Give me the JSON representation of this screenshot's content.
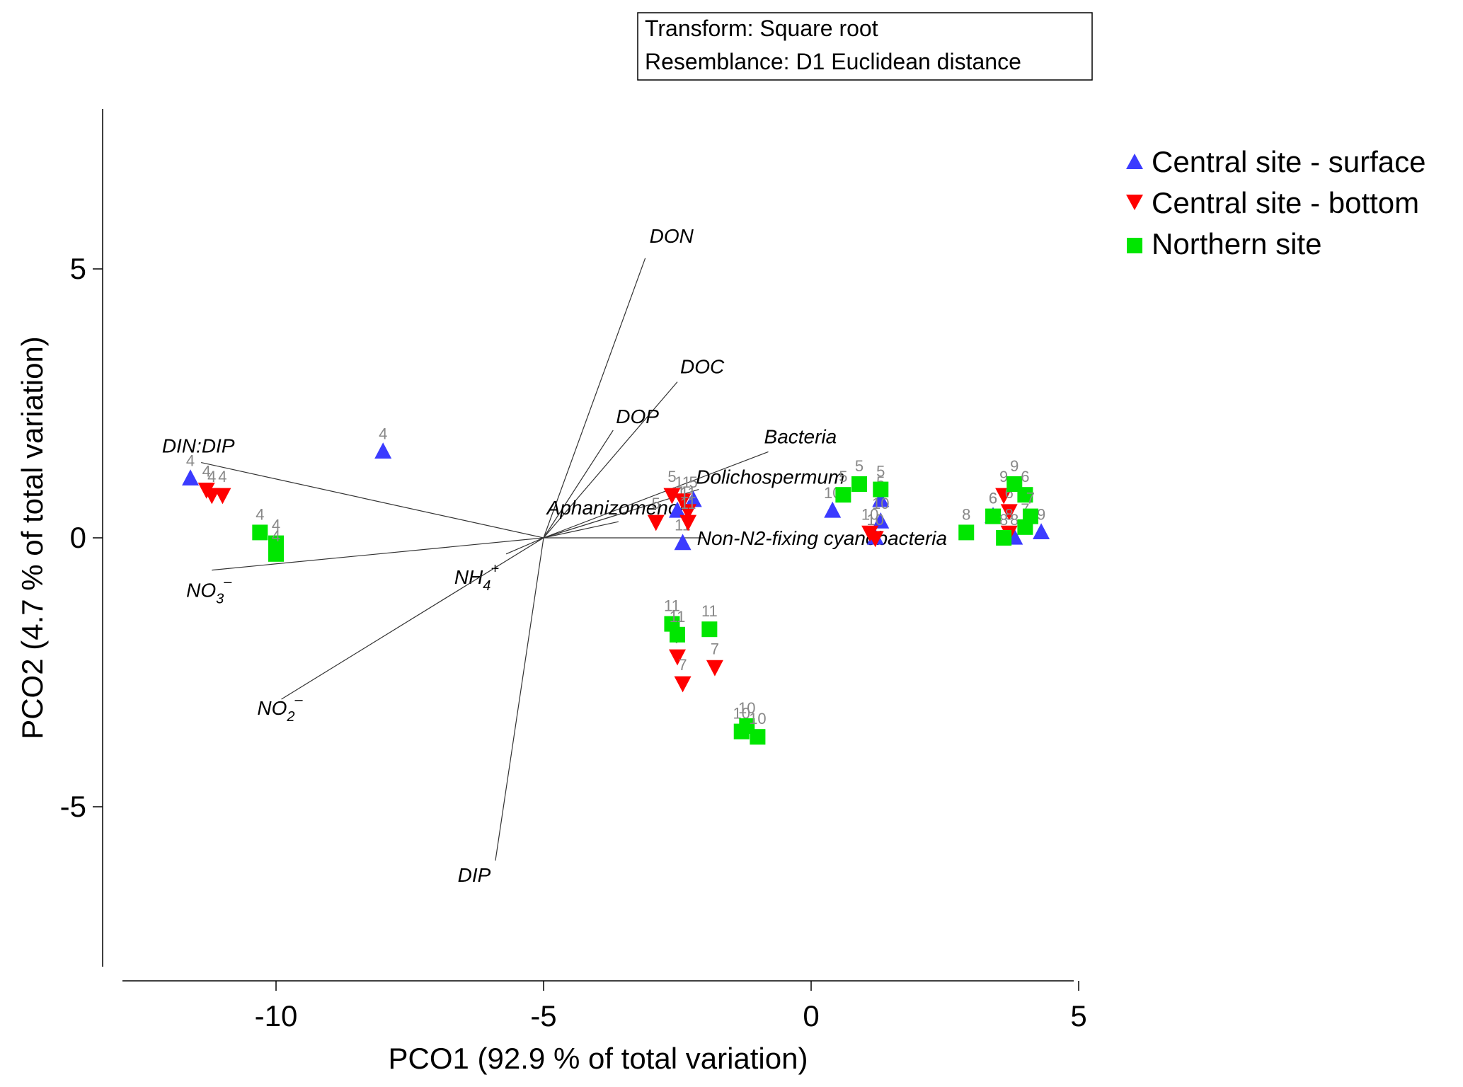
{
  "chart_data": {
    "type": "scatter",
    "xlabel": "PCO1 (92.9 % of total variation)",
    "ylabel": "PCO2 (4.7 % of total variation)",
    "xlim": [
      -13,
      5
    ],
    "ylim": [
      -8,
      8
    ],
    "x_ticks": [
      -10,
      -5,
      0,
      5
    ],
    "y_ticks": [
      -5,
      0,
      5
    ],
    "info_box": [
      "Transform: Square root",
      "Resemblance: D1 Euclidean distance"
    ],
    "legend_position": "top-right",
    "vector_origin": [
      -5,
      0
    ],
    "vectors": [
      {
        "name": "DON",
        "x": -3.1,
        "y": 5.2
      },
      {
        "name": "DOC",
        "x": -2.5,
        "y": 2.9
      },
      {
        "name": "DOP",
        "x": -3.7,
        "y": 2.0
      },
      {
        "name": "Bacteria",
        "x": -0.8,
        "y": 1.6
      },
      {
        "name": "Dolichospermum",
        "x": -2.1,
        "y": 0.9
      },
      {
        "name": "Aphanizomenon",
        "x": -3.6,
        "y": 0.3
      },
      {
        "name": "Non-N2-fixing cyanobacteria",
        "x": -2.0,
        "y": 0.0
      },
      {
        "name": "DIN:DIP",
        "x": -11.4,
        "y": 1.4
      },
      {
        "name": "NH4+",
        "x": -5.7,
        "y": -0.3
      },
      {
        "name": "NO3-",
        "x": -11.2,
        "y": -0.6
      },
      {
        "name": "NO2-",
        "x": -9.9,
        "y": -3.0
      },
      {
        "name": "DIP",
        "x": -5.9,
        "y": -6.0
      }
    ],
    "vector_labels": [
      {
        "base": "DON",
        "sub": "",
        "sup": ""
      },
      {
        "base": "DOC",
        "sub": "",
        "sup": ""
      },
      {
        "base": "DOP",
        "sub": "",
        "sup": ""
      },
      {
        "base": "Bacteria",
        "sub": "",
        "sup": ""
      },
      {
        "base": "Dolichospermum",
        "sub": "",
        "sup": ""
      },
      {
        "base": "Aphanizomenon",
        "sub": "",
        "sup": ""
      },
      {
        "base": "Non-N2-fixing cyanobacteria",
        "sub": "",
        "sup": ""
      },
      {
        "base": "DIN:DIP",
        "sub": "",
        "sup": ""
      },
      {
        "base": "NH",
        "sub": "4",
        "sup": "+"
      },
      {
        "base": "NO",
        "sub": "3",
        "sup": "–"
      },
      {
        "base": "NO",
        "sub": "2",
        "sup": "–"
      },
      {
        "base": "DIP",
        "sub": "",
        "sup": ""
      }
    ],
    "series": [
      {
        "name": "Central site - surface",
        "marker": "triangle-up",
        "color": "#3b3bff",
        "points": [
          {
            "x": -11.6,
            "y": 1.1,
            "label": "4"
          },
          {
            "x": -8.0,
            "y": 1.6,
            "label": "4"
          },
          {
            "x": -2.5,
            "y": 0.5,
            "label": "11"
          },
          {
            "x": -2.4,
            "y": -0.1,
            "label": "11"
          },
          {
            "x": -2.2,
            "y": 0.7,
            "label": "5"
          },
          {
            "x": 0.4,
            "y": 0.5,
            "label": "10"
          },
          {
            "x": 1.2,
            "y": 0.0,
            "label": "10"
          },
          {
            "x": 1.3,
            "y": 0.7,
            "label": "5"
          },
          {
            "x": 1.3,
            "y": 0.3,
            "label": "10"
          },
          {
            "x": 3.4,
            "y": 0.4,
            "label": "6"
          },
          {
            "x": 3.8,
            "y": 0.0,
            "label": "8"
          },
          {
            "x": 4.3,
            "y": 0.1,
            "label": "9"
          }
        ]
      },
      {
        "name": "Central site - bottom",
        "marker": "triangle-down",
        "color": "#ff0000",
        "points": [
          {
            "x": -11.3,
            "y": 0.9,
            "label": "4"
          },
          {
            "x": -11.2,
            "y": 0.8,
            "label": "4"
          },
          {
            "x": -11.0,
            "y": 0.8,
            "label": "4"
          },
          {
            "x": -2.9,
            "y": 0.3,
            "label": "5"
          },
          {
            "x": -2.6,
            "y": 0.8,
            "label": "5"
          },
          {
            "x": -2.4,
            "y": 0.7,
            "label": "11"
          },
          {
            "x": -2.3,
            "y": 0.5,
            "label": "11"
          },
          {
            "x": -2.3,
            "y": 0.3,
            "label": "11"
          },
          {
            "x": -2.5,
            "y": -2.2,
            "label": "7"
          },
          {
            "x": -2.4,
            "y": -2.7,
            "label": "7"
          },
          {
            "x": -1.8,
            "y": -2.4,
            "label": "7"
          },
          {
            "x": 1.1,
            "y": 0.1,
            "label": "10"
          },
          {
            "x": 1.2,
            "y": 0.0,
            "label": "10"
          },
          {
            "x": 3.6,
            "y": 0.8,
            "label": "9"
          },
          {
            "x": 3.7,
            "y": 0.5,
            "label": "6"
          },
          {
            "x": 3.7,
            "y": 0.1,
            "label": "8"
          }
        ]
      },
      {
        "name": "Northern site",
        "marker": "square",
        "color": "#00e600",
        "points": [
          {
            "x": -10.3,
            "y": 0.1,
            "label": "4"
          },
          {
            "x": -10.0,
            "y": -0.1,
            "label": "4"
          },
          {
            "x": -10.0,
            "y": -0.3,
            "label": "4"
          },
          {
            "x": -2.6,
            "y": -1.6,
            "label": "11"
          },
          {
            "x": -2.5,
            "y": -1.8,
            "label": "11"
          },
          {
            "x": -1.9,
            "y": -1.7,
            "label": "11"
          },
          {
            "x": -1.3,
            "y": -3.6,
            "label": "10"
          },
          {
            "x": -1.2,
            "y": -3.5,
            "label": "10"
          },
          {
            "x": -1.0,
            "y": -3.7,
            "label": "10"
          },
          {
            "x": 0.6,
            "y": 0.8,
            "label": "5"
          },
          {
            "x": 0.9,
            "y": 1.0,
            "label": "5"
          },
          {
            "x": 1.3,
            "y": 0.9,
            "label": "5"
          },
          {
            "x": 2.9,
            "y": 0.1,
            "label": "8"
          },
          {
            "x": 3.4,
            "y": 0.4,
            "label": "6"
          },
          {
            "x": 3.6,
            "y": 0.0,
            "label": "8"
          },
          {
            "x": 3.8,
            "y": 1.0,
            "label": "9"
          },
          {
            "x": 4.0,
            "y": 0.8,
            "label": "6"
          },
          {
            "x": 4.0,
            "y": 0.2,
            "label": "7"
          },
          {
            "x": 4.1,
            "y": 0.4,
            "label": "7"
          }
        ]
      }
    ]
  }
}
